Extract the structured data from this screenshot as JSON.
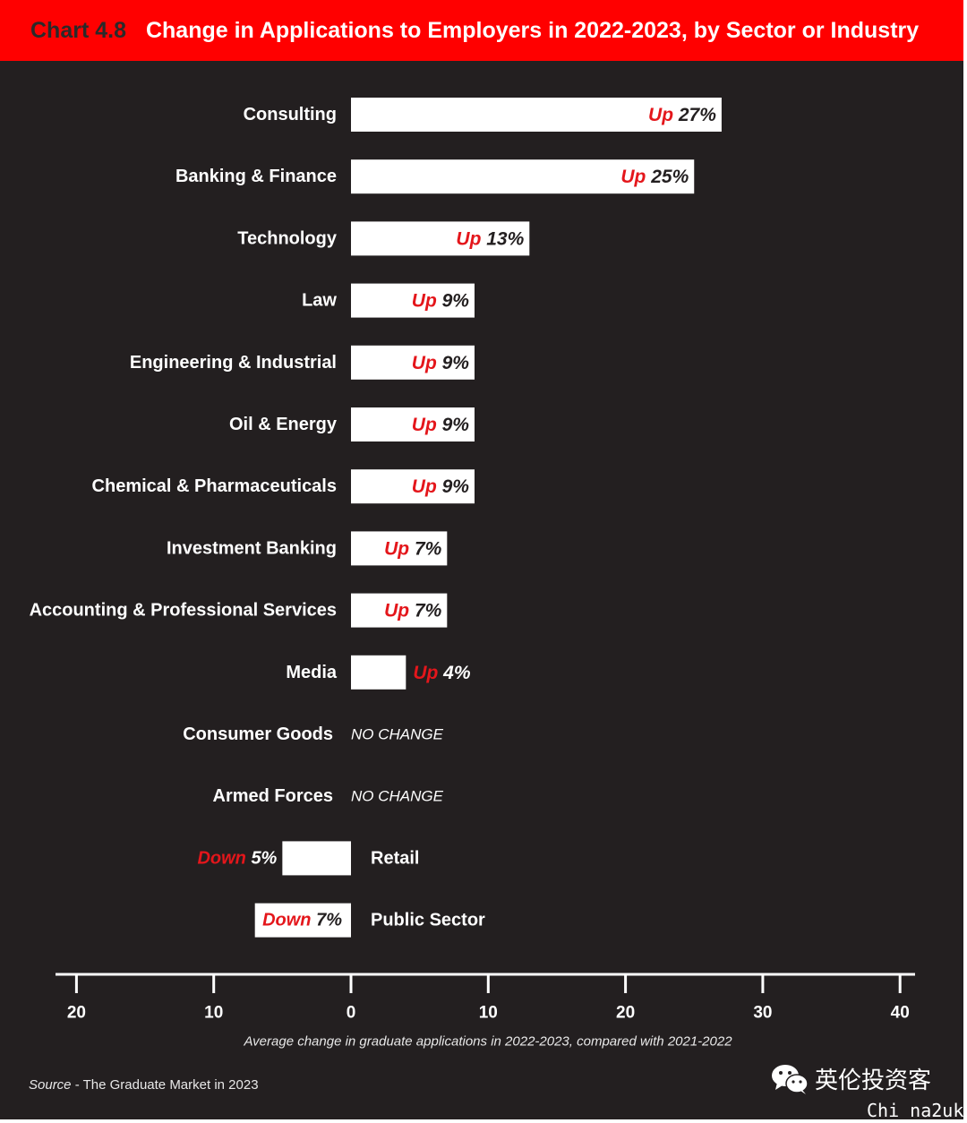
{
  "header": {
    "chart_number": "Chart 4.8",
    "title": "Change in Applications to Employers in 2022-2023, by Sector or Industry"
  },
  "colors": {
    "background": "#231f20",
    "header": "#ff0000",
    "bar": "#ffffff",
    "direction_text": "#e4161b",
    "value_text": "#231f20"
  },
  "chart_data": {
    "type": "bar",
    "orientation": "horizontal",
    "xlabel": "Average change in graduate applications in 2022-2023, compared with 2021-2022",
    "xlim": [
      -20,
      40
    ],
    "ticks": [
      -20,
      -10,
      0,
      10,
      20,
      30,
      40
    ],
    "tick_labels": [
      "20",
      "10",
      "0",
      "10",
      "20",
      "30",
      "40"
    ],
    "categories": [
      "Consulting",
      "Banking & Finance",
      "Technology",
      "Law",
      "Engineering & Industrial",
      "Oil & Energy",
      "Chemical & Pharmaceuticals",
      "Investment Banking",
      "Accounting & Professional Services",
      "Media",
      "Consumer Goods",
      "Armed Forces",
      "Retail",
      "Public Sector"
    ],
    "values": [
      27,
      25,
      13,
      9,
      9,
      9,
      9,
      7,
      7,
      4,
      0,
      0,
      -5,
      -7
    ],
    "bar_labels": [
      {
        "dir": "Up",
        "pct": "27%"
      },
      {
        "dir": "Up",
        "pct": "25%"
      },
      {
        "dir": "Up",
        "pct": "13%"
      },
      {
        "dir": "Up",
        "pct": "9%"
      },
      {
        "dir": "Up",
        "pct": "9%"
      },
      {
        "dir": "Up",
        "pct": "9%"
      },
      {
        "dir": "Up",
        "pct": "9%"
      },
      {
        "dir": "Up",
        "pct": "7%"
      },
      {
        "dir": "Up",
        "pct": "7%"
      },
      {
        "dir": "Up",
        "pct": "4%"
      },
      {
        "dir": "",
        "pct": "NO CHANGE"
      },
      {
        "dir": "",
        "pct": "NO CHANGE"
      },
      {
        "dir": "Down",
        "pct": "5%"
      },
      {
        "dir": "Down",
        "pct": "7%"
      }
    ]
  },
  "footer": {
    "source_label": "Source",
    "source_text": " - The Graduate Market in 2023"
  },
  "watermark": {
    "icon": "wechat-icon",
    "text": "英伦投资客",
    "footer": "Chi na2uk"
  }
}
